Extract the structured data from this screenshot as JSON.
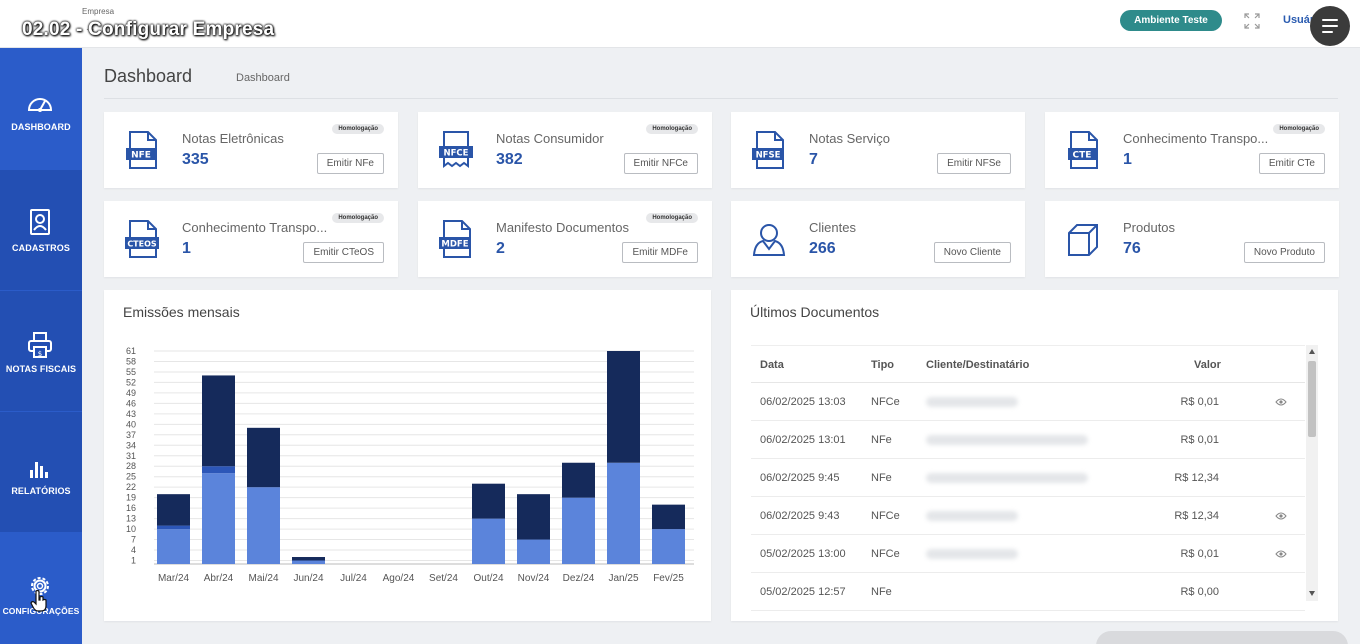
{
  "video_title": "02.02 - Configurar Empresa",
  "header": {
    "company_label": "Empresa",
    "company_sub": "...",
    "environment_badge": "Ambiente Teste",
    "user_link": "Usuári",
    "accent_color": "#2e8b8b"
  },
  "sidebar": {
    "color": "#2b5cc9",
    "items": [
      {
        "label": "DASHBOARD",
        "icon": "speedometer-icon"
      },
      {
        "label": "CADASTROS",
        "icon": "id-badge-icon"
      },
      {
        "label": "NOTAS FISCAIS",
        "icon": "printer-invoice-icon"
      },
      {
        "label": "RELATÓRIOS",
        "icon": "bar-chart-icon"
      },
      {
        "label": "CONFIGURAÇÕES",
        "icon": "gear-icon"
      }
    ]
  },
  "page": {
    "title": "Dashboard",
    "breadcrumb": "Dashboard"
  },
  "cards": [
    {
      "title": "Notas Eletrônicas",
      "count": "335",
      "badge": "Homologação",
      "button": "Emitir NFe",
      "doc_label": "NFE"
    },
    {
      "title": "Notas Consumidor",
      "count": "382",
      "badge": "Homologação",
      "button": "Emitir NFCe",
      "doc_label": "NFCE"
    },
    {
      "title": "Notas Serviço",
      "count": "7",
      "badge": "",
      "button": "Emitir NFSe",
      "doc_label": "NFSE"
    },
    {
      "title": "Conhecimento Transpo...",
      "count": "1",
      "badge": "Homologação",
      "button": "Emitir CTe",
      "doc_label": "CTE"
    },
    {
      "title": "Conhecimento Transpo...",
      "count": "1",
      "badge": "Homologação",
      "button": "Emitir CTeOS",
      "doc_label": "CTEOS"
    },
    {
      "title": "Manifesto Documentos",
      "count": "2",
      "badge": "Homologação",
      "button": "Emitir MDFe",
      "doc_label": "MDFE"
    },
    {
      "title": "Clientes",
      "count": "266",
      "badge": "",
      "button": "Novo Cliente",
      "doc_label": ""
    },
    {
      "title": "Produtos",
      "count": "76",
      "badge": "",
      "button": "Novo Produto",
      "doc_label": ""
    }
  ],
  "emissions_panel": {
    "title": "Emissões mensais"
  },
  "chart_data": {
    "type": "bar",
    "stacked": true,
    "categories": [
      "Mar/24",
      "Abr/24",
      "Mai/24",
      "Jun/24",
      "Jul/24",
      "Ago/24",
      "Set/24",
      "Out/24",
      "Nov/24",
      "Dez/24",
      "Jan/25",
      "Fev/25"
    ],
    "series": [
      {
        "values": [
          10,
          26,
          22,
          1,
          0,
          0,
          0,
          13,
          7,
          19,
          29,
          10
        ],
        "color": "#5b84db"
      },
      {
        "values": [
          1,
          2,
          0,
          0,
          0,
          0,
          0,
          0,
          0,
          0,
          0,
          0
        ],
        "color": "#2c56b8"
      },
      {
        "values": [
          9,
          26,
          17,
          1,
          0,
          0,
          0,
          10,
          13,
          10,
          32,
          7
        ],
        "color": "#152a5b"
      }
    ],
    "yticks": [
      1,
      4,
      7,
      10,
      13,
      16,
      19,
      22,
      25,
      28,
      31,
      34,
      37,
      40,
      43,
      46,
      49,
      52,
      55,
      58,
      61
    ],
    "ylim": [
      0,
      61
    ],
    "grid": true,
    "legend": "none"
  },
  "documents_panel": {
    "title": "Últimos Documentos",
    "columns": [
      "Data",
      "Tipo",
      "Cliente/Destinatário",
      "Valor"
    ],
    "rows": [
      {
        "data": "06/02/2025 13:03",
        "tipo": "NFCe",
        "valor": "R$ 0,01",
        "eye": true
      },
      {
        "data": "06/02/2025 13:01",
        "tipo": "NFe",
        "valor": "R$ 0,01",
        "eye": false
      },
      {
        "data": "06/02/2025 9:45",
        "tipo": "NFe",
        "valor": "R$ 12,34",
        "eye": false
      },
      {
        "data": "06/02/2025 9:43",
        "tipo": "NFCe",
        "valor": "R$ 12,34",
        "eye": true
      },
      {
        "data": "05/02/2025 13:00",
        "tipo": "NFCe",
        "valor": "R$ 0,01",
        "eye": true
      },
      {
        "data": "05/02/2025 12:57",
        "tipo": "NFe",
        "valor": "R$ 0,00",
        "eye": false
      }
    ]
  }
}
